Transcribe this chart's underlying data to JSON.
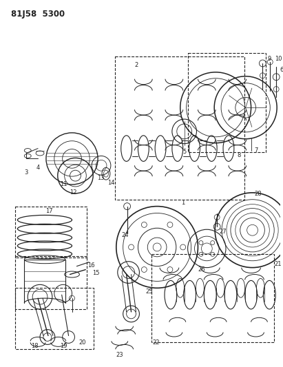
{
  "title": "81J58  5300",
  "bg": "#ffffff",
  "lc": "#222222",
  "fig_w": 4.11,
  "fig_h": 5.33,
  "dpi": 100
}
